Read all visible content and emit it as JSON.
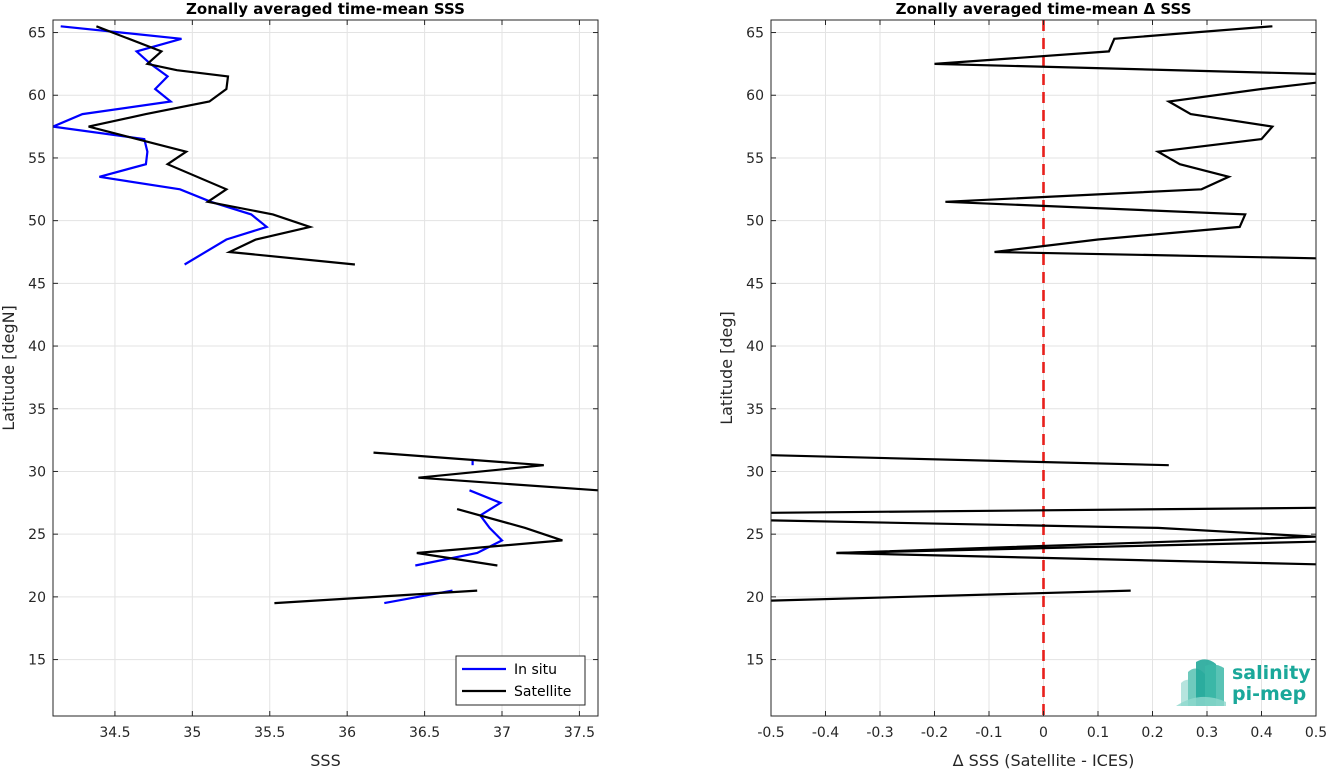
{
  "chart_data": [
    {
      "type": "line",
      "title": "Zonally averaged time-mean SSS",
      "xlabel": "SSS",
      "ylabel": "Latitude [degN]",
      "xlim": [
        34.1,
        37.62
      ],
      "ylim": [
        10.5,
        66
      ],
      "xticks": [
        "34.5",
        "35",
        "35.5",
        "36",
        "36.5",
        "37",
        "37.5"
      ],
      "yticks": [
        "15",
        "20",
        "25",
        "30",
        "35",
        "40",
        "45",
        "50",
        "55",
        "60",
        "65"
      ],
      "grid": true,
      "legend_position": "bottom-right",
      "series": [
        {
          "name": "In situ",
          "color": "#0000ff",
          "segments": [
            {
              "x": [
                34.15,
                34.93,
                34.64,
                34.73,
                34.84,
                34.76,
                34.86,
                34.29,
                34.1,
                34.69,
                34.71,
                34.7,
                34.4,
                34.92,
                35.12,
                35.38,
                35.48,
                35.22,
                34.95
              ],
              "y": [
                65.5,
                64.5,
                63.5,
                62.5,
                61.5,
                60.5,
                59.5,
                58.5,
                57.5,
                56.5,
                55.5,
                54.5,
                53.5,
                52.5,
                51.5,
                50.5,
                49.5,
                48.5,
                46.5
              ]
            },
            {
              "x": [
                36.81,
                36.81
              ],
              "y": [
                31.0,
                30.5
              ]
            },
            {
              "x": [
                36.79,
                36.99,
                36.86,
                36.92,
                37.0,
                36.84,
                36.44
              ],
              "y": [
                28.5,
                27.5,
                26.5,
                25.5,
                24.5,
                23.5,
                22.5
              ]
            },
            {
              "x": [
                36.68,
                36.24
              ],
              "y": [
                20.5,
                19.5
              ]
            }
          ]
        },
        {
          "name": "Satellite",
          "color": "#000000",
          "segments": [
            {
              "x": [
                34.38,
                34.8,
                34.71,
                34.9,
                35.23,
                35.22,
                35.11,
                34.7,
                34.33,
                34.96,
                34.84,
                35.22,
                35.1,
                35.52,
                35.76,
                35.41,
                35.24,
                36.05
              ],
              "y": [
                65.5,
                63.5,
                62.5,
                62.0,
                61.5,
                60.5,
                59.5,
                58.5,
                57.5,
                55.5,
                54.5,
                52.5,
                51.5,
                50.5,
                49.5,
                48.5,
                47.5,
                46.5
              ]
            },
            {
              "x": [
                36.17,
                37.27,
                36.46,
                37.62
              ],
              "y": [
                31.5,
                30.5,
                29.5,
                28.5
              ]
            },
            {
              "x": [
                36.71,
                37.15,
                37.39,
                36.45,
                36.97
              ],
              "y": [
                27.0,
                25.5,
                24.5,
                23.5,
                22.5
              ]
            },
            {
              "x": [
                36.84,
                35.53
              ],
              "y": [
                20.5,
                19.5
              ]
            }
          ]
        }
      ]
    },
    {
      "type": "line",
      "title": "Zonally averaged time-mean Δ SSS",
      "xlabel": "Δ SSS (Satellite - ICES)",
      "ylabel": "Latitude [deg]",
      "xlim": [
        -0.5,
        0.5
      ],
      "ylim": [
        10.5,
        66
      ],
      "xticks": [
        "-0.5",
        "-0.4",
        "-0.3",
        "-0.2",
        "-0.1",
        "0",
        "0.1",
        "0.2",
        "0.3",
        "0.4",
        "0.5"
      ],
      "yticks": [
        "15",
        "20",
        "25",
        "30",
        "35",
        "40",
        "45",
        "50",
        "55",
        "60",
        "65"
      ],
      "grid": true,
      "reference_line": {
        "x": 0,
        "color": "#e8201c",
        "style": "dashed"
      },
      "series": [
        {
          "name": "",
          "color": "#000000",
          "segments": [
            {
              "x": [
                0.42,
                0.13,
                0.12,
                -0.2,
                0.5
              ],
              "y": [
                65.5,
                64.5,
                63.5,
                62.5,
                61.7
              ]
            },
            {
              "x": [
                0.5,
                0.4,
                0.23,
                0.27,
                0.42,
                0.4,
                0.21,
                0.25,
                0.34,
                0.29,
                -0.18,
                0.37,
                0.36,
                0.1,
                -0.09,
                0.5
              ],
              "y": [
                61.0,
                60.5,
                59.5,
                58.5,
                57.5,
                56.5,
                55.5,
                54.5,
                53.5,
                52.5,
                51.5,
                50.5,
                49.5,
                48.5,
                47.5,
                47.0
              ]
            },
            {
              "x": [
                -0.5,
                0.23
              ],
              "y": [
                31.3,
                30.5
              ]
            },
            {
              "x": [
                -0.5,
                0.5
              ],
              "y": [
                26.7,
                27.1
              ]
            },
            {
              "x": [
                -0.5,
                0.21,
                0.5,
                -0.38,
                0.5
              ],
              "y": [
                26.1,
                25.5,
                24.8,
                23.5,
                22.6
              ]
            },
            {
              "x": [
                0.5,
                -0.38
              ],
              "y": [
                24.4,
                23.5
              ]
            },
            {
              "x": [
                -0.5,
                0.16
              ],
              "y": [
                19.7,
                20.5
              ]
            }
          ]
        }
      ]
    }
  ],
  "legend": {
    "items": [
      "In situ",
      "Satellite"
    ]
  },
  "logo": {
    "line1": "salinity",
    "line2": "pi-mep",
    "color": "#1aa89a"
  }
}
